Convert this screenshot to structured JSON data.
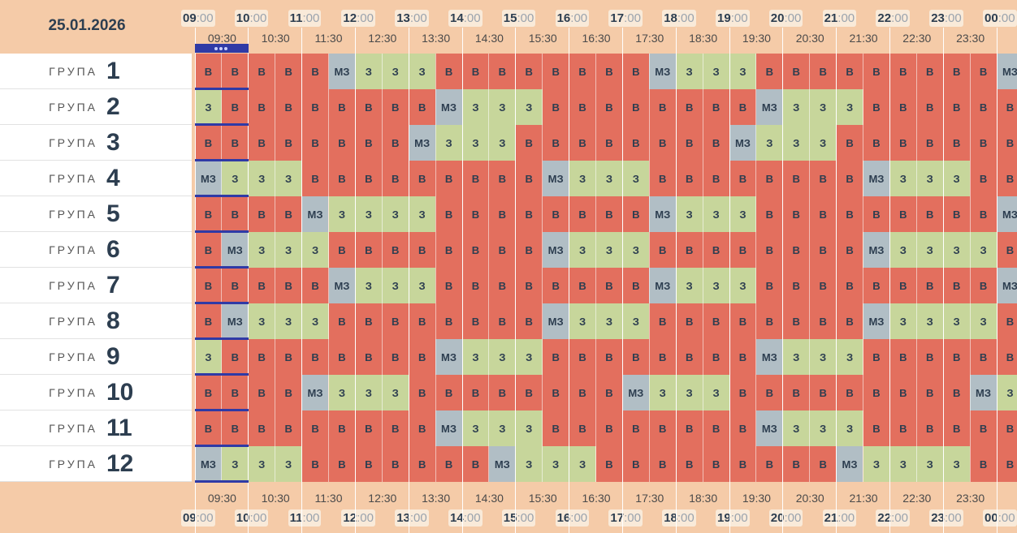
{
  "date": "25.01.2026",
  "group_label": "ГРУПА",
  "hours": [
    "09",
    "10",
    "11",
    "12",
    "13",
    "14",
    "15",
    "16",
    "17",
    "18",
    "19",
    "20",
    "21",
    "22",
    "23",
    "00"
  ],
  "minutes": ":00",
  "halfhours": [
    "09:30",
    "10:30",
    "11:30",
    "12:30",
    "13:30",
    "14:30",
    "15:30",
    "16:30",
    "17:30",
    "18:30",
    "19:30",
    "20:30",
    "21:30",
    "22:30",
    "23:30"
  ],
  "legend": {
    "B": "В",
    "Z": "З",
    "M": "МЗ"
  },
  "colors": {
    "B": "#e36f5e",
    "Z": "#c7d69b",
    "M": "#b1bec5",
    "current_marker": "#2f3aa6"
  },
  "groups": [
    {
      "num": "1",
      "cells": "BBBBBMZZZBBBBBBBBMZZZBBBBBBBBBM"
    },
    {
      "num": "2",
      "cells": "ZBBBBBBBBMZZZBBBBBBBBMZZZBBBBBB"
    },
    {
      "num": "3",
      "cells": "BBBBBBBBMZZZBBBBBBBBMZZZBBBBBBB"
    },
    {
      "num": "4",
      "cells": "MZZZBBBBBBBBBMZZZBBBBBBBBMZZZBB"
    },
    {
      "num": "5",
      "cells": "BBBBMZZZZBBBBBBBBMZZZBBBBBBBBBM"
    },
    {
      "num": "6",
      "cells": "BMZZZBBBBBBBBMZZZBBBBBBBBMZZZZB"
    },
    {
      "num": "7",
      "cells": "BBBBBMZZZBBBBBBBBMZZZBBBBBBBBBM"
    },
    {
      "num": "8",
      "cells": "BMZZZBBBBBBBBMZZZBBBBBBBBMZZZZB"
    },
    {
      "num": "9",
      "cells": "ZBBBBBBBBMZZZBBBBBBBBMZZZBBBBBB"
    },
    {
      "num": "10",
      "cells": "BBBBMZZZBBBBBBBBMZZZBBBBBBBBBMZ"
    },
    {
      "num": "11",
      "cells": "BBBBBBBBBMZZZBBBBBBBBMZZZBBBBBB"
    },
    {
      "num": "12",
      "cells": "MZZZBBBBBBBMZZZBBBBBBBBBMZZZZBB"
    }
  ]
}
